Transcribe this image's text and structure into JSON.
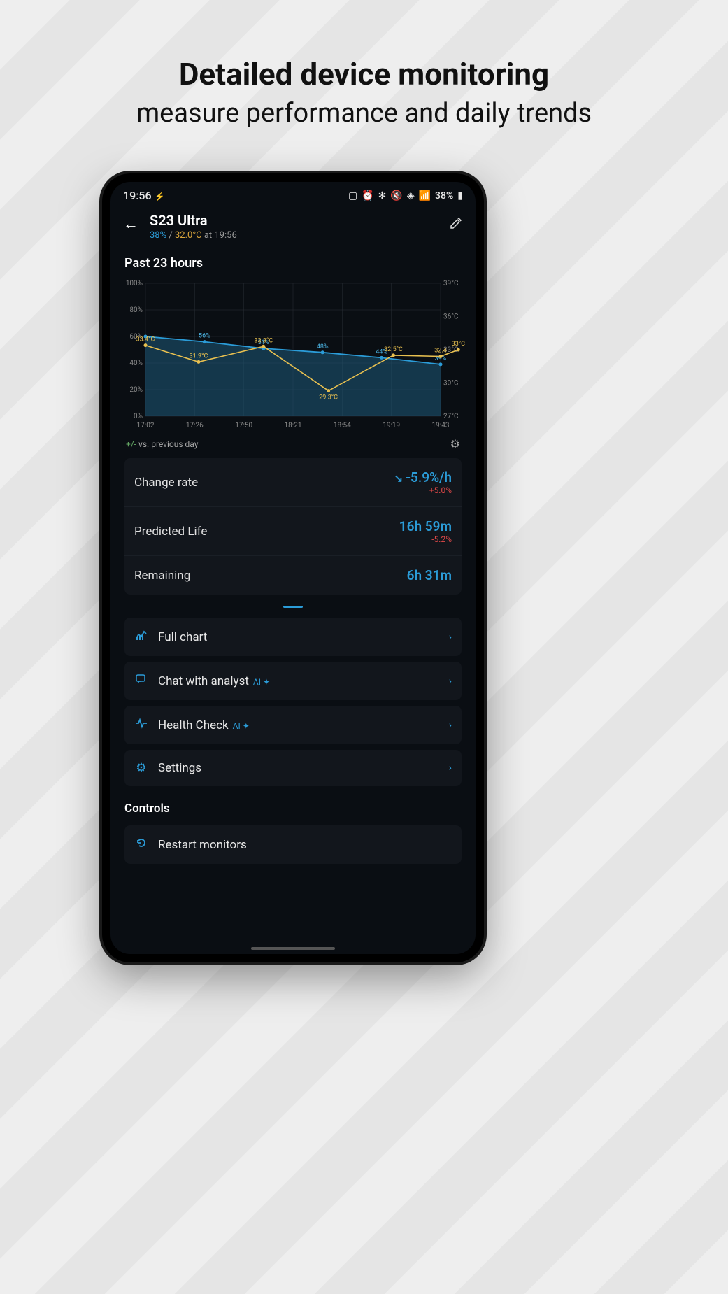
{
  "marketing": {
    "title": "Detailed device monitoring",
    "subtitle": "measure performance and daily trends"
  },
  "status_bar": {
    "time": "19:56",
    "battery_text": "38%"
  },
  "header": {
    "device_name": "S23 Ultra",
    "percent": "38%",
    "separator": " / ",
    "temp": "32.0°C",
    "at_time": " at 19:56"
  },
  "chart": {
    "title": "Past 23 hours",
    "type": "dual-axis-line-area",
    "left_axis": {
      "label_suffix": "%",
      "min": 0,
      "max": 100,
      "ticks": [
        0,
        20,
        40,
        60,
        80,
        100
      ]
    },
    "right_axis": {
      "label_suffix": "°C",
      "ticks": [
        27,
        30,
        33,
        36,
        39
      ]
    },
    "x_labels": [
      "17:02",
      "17:26",
      "17:50",
      "18:21",
      "18:54",
      "19:19",
      "19:43"
    ],
    "battery_series": {
      "color": "#2b9cd8",
      "fill": "#1e5a7a",
      "fill_opacity": 0.55,
      "points": [
        {
          "x": 0,
          "pct": 60,
          "label": "60%",
          "show": false
        },
        {
          "x": 1,
          "pct": 56,
          "label": "56%",
          "show": true
        },
        {
          "x": 2,
          "pct": 51,
          "label": "51%",
          "show": true
        },
        {
          "x": 3,
          "pct": 48,
          "label": "48%",
          "show": true
        },
        {
          "x": 4,
          "pct": 44,
          "label": "44%",
          "show": true
        },
        {
          "x": 5,
          "pct": 39,
          "label": "39%",
          "show": true
        }
      ]
    },
    "temp_series": {
      "color": "#e8c050",
      "points": [
        {
          "x": 0,
          "val": 33.4,
          "label": "33.4°C"
        },
        {
          "x": 0.9,
          "val": 31.9,
          "label": "31.9°C"
        },
        {
          "x": 2,
          "val": 33.3,
          "label": "33.3°C"
        },
        {
          "x": 3.1,
          "val": 29.3,
          "label": "29.3°C"
        },
        {
          "x": 4.2,
          "val": 32.5,
          "label": "32.5°C"
        },
        {
          "x": 5,
          "val": 32.4,
          "label": "32.4"
        },
        {
          "x": 5.3,
          "val": 33,
          "label": "33°C"
        }
      ]
    },
    "legend": {
      "pm": "+/-",
      "text": " vs. previous day"
    },
    "grid_color": "#2a2f36",
    "bg_color": "#0a0e13"
  },
  "stats": {
    "change_rate": {
      "label": "Change rate",
      "value": "-5.9%/h",
      "delta": "+5.0%",
      "trend_icon": "↘"
    },
    "predicted": {
      "label": "Predicted Life",
      "value": "16h 59m",
      "delta": "-5.2%"
    },
    "remaining": {
      "label": "Remaining",
      "value": "6h 31m"
    }
  },
  "menu": {
    "full_chart": "Full chart",
    "chat": "Chat with analyst",
    "health": "Health Check",
    "settings": "Settings",
    "ai_badge": "AI ✦"
  },
  "controls": {
    "header": "Controls",
    "restart": "Restart monitors"
  },
  "colors": {
    "accent": "#2b9cd8",
    "temp": "#d9a53b",
    "card_bg": "#12161c",
    "screen_bg": "#0a0e13",
    "delta_warn": "#e04848"
  }
}
